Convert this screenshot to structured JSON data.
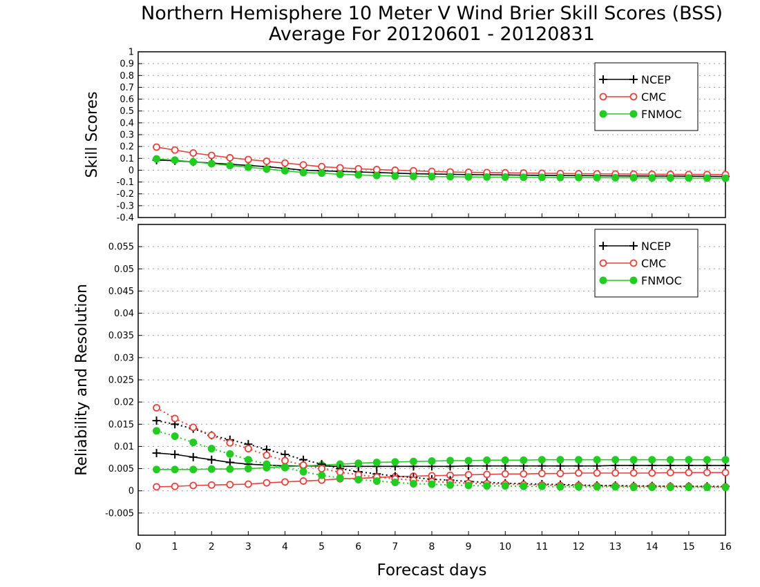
{
  "title_line1": "Northern Hemisphere 10 Meter V Wind Brier Skill Scores (BSS)",
  "title_line2": "Average For 20120601 - 20120831",
  "xlabel": "Forecast days",
  "colors": {
    "NCEP": "#000000",
    "CMC": "#e8403c",
    "FNMOC": "#22cc22",
    "grid": "#999999"
  },
  "chart_data": [
    {
      "type": "line",
      "ylabel": "Skill Scores",
      "xlim": [
        0,
        16
      ],
      "ylim": [
        -0.4,
        1
      ],
      "x_ticks": [
        0,
        1,
        2,
        3,
        4,
        5,
        6,
        7,
        8,
        9,
        10,
        11,
        12,
        13,
        14,
        15,
        16
      ],
      "y_ticks": [
        "-0.4",
        "-0.3",
        "-0.2",
        "-0.1",
        "0",
        "0.1",
        "0.2",
        "0.3",
        "0.4",
        "0.5",
        "0.6",
        "0.7",
        "0.8",
        "0.9",
        "1"
      ],
      "grid": true,
      "legend_position": "top-right",
      "x": [
        0.5,
        1,
        1.5,
        2,
        2.5,
        3,
        3.5,
        4,
        4.5,
        5,
        5.5,
        6,
        6.5,
        7,
        7.5,
        8,
        8.5,
        9,
        9.5,
        10,
        10.5,
        11,
        11.5,
        12,
        12.5,
        13,
        13.5,
        14,
        14.5,
        15,
        15.5,
        16
      ],
      "series": [
        {
          "name": "NCEP",
          "marker": "plus",
          "line": "solid",
          "values": [
            0.085,
            0.08,
            0.07,
            0.06,
            0.05,
            0.04,
            0.03,
            0.015,
            0.0,
            -0.005,
            -0.01,
            -0.015,
            -0.02,
            -0.025,
            -0.03,
            -0.032,
            -0.035,
            -0.037,
            -0.039,
            -0.04,
            -0.042,
            -0.044,
            -0.045,
            -0.046,
            -0.047,
            -0.048,
            -0.049,
            -0.05,
            -0.05,
            -0.051,
            -0.052,
            -0.053
          ]
        },
        {
          "name": "CMC",
          "marker": "open-circle",
          "line": "solid",
          "values": [
            0.195,
            0.17,
            0.145,
            0.125,
            0.105,
            0.09,
            0.075,
            0.06,
            0.045,
            0.03,
            0.02,
            0.012,
            0.005,
            0.0,
            -0.005,
            -0.01,
            -0.015,
            -0.018,
            -0.02,
            -0.022,
            -0.024,
            -0.026,
            -0.028,
            -0.03,
            -0.031,
            -0.032,
            -0.033,
            -0.034,
            -0.035,
            -0.036,
            -0.036,
            -0.037
          ]
        },
        {
          "name": "FNMOC",
          "marker": "filled-circle",
          "line": "solid",
          "values": [
            0.095,
            0.085,
            0.07,
            0.055,
            0.04,
            0.025,
            0.01,
            -0.005,
            -0.02,
            -0.025,
            -0.035,
            -0.04,
            -0.045,
            -0.05,
            -0.052,
            -0.054,
            -0.055,
            -0.057,
            -0.058,
            -0.059,
            -0.06,
            -0.061,
            -0.062,
            -0.062,
            -0.063,
            -0.064,
            -0.064,
            -0.065,
            -0.065,
            -0.066,
            -0.067,
            -0.068
          ]
        }
      ]
    },
    {
      "type": "line",
      "ylabel": "Reliability and Resolution",
      "xlim": [
        0,
        16
      ],
      "ylim": [
        -0.01,
        0.06
      ],
      "x_ticks": [
        0,
        1,
        2,
        3,
        4,
        5,
        6,
        7,
        8,
        9,
        10,
        11,
        12,
        13,
        14,
        15,
        16
      ],
      "y_ticks": [
        "-0.005",
        "0",
        "0.005",
        "0.01",
        "0.015",
        "0.02",
        "0.025",
        "0.03",
        "0.035",
        "0.04",
        "0.045",
        "0.05",
        "0.055"
      ],
      "grid": true,
      "legend_position": "top-right",
      "x": [
        0.5,
        1,
        1.5,
        2,
        2.5,
        3,
        3.5,
        4,
        4.5,
        5,
        5.5,
        6,
        6.5,
        7,
        7.5,
        8,
        8.5,
        9,
        9.5,
        10,
        10.5,
        11,
        11.5,
        12,
        12.5,
        13,
        13.5,
        14,
        14.5,
        15,
        15.5,
        16
      ],
      "series": [
        {
          "name": "NCEP",
          "group": "resolution",
          "marker": "plus",
          "line": "solid",
          "values": [
            0.0085,
            0.0082,
            0.0076,
            0.007,
            0.0064,
            0.006,
            0.0058,
            0.0056,
            0.0056,
            0.0056,
            0.0055,
            0.0055,
            0.0055,
            0.0055,
            0.0055,
            0.0055,
            0.0055,
            0.0056,
            0.0056,
            0.0056,
            0.0056,
            0.0056,
            0.0056,
            0.0056,
            0.0056,
            0.0057,
            0.0057,
            0.0057,
            0.0057,
            0.0057,
            0.0057,
            0.0057
          ]
        },
        {
          "name": "CMC",
          "group": "resolution",
          "marker": "open-circle",
          "line": "solid",
          "values": [
            0.0009,
            0.001,
            0.0012,
            0.0013,
            0.0014,
            0.0015,
            0.0018,
            0.002,
            0.0022,
            0.0024,
            0.0027,
            0.0028,
            0.003,
            0.0032,
            0.0033,
            0.0034,
            0.0035,
            0.0036,
            0.0037,
            0.0038,
            0.0038,
            0.0039,
            0.0039,
            0.004,
            0.004,
            0.004,
            0.004,
            0.004,
            0.0041,
            0.0041,
            0.0041,
            0.0041
          ]
        },
        {
          "name": "FNMOC",
          "group": "resolution",
          "marker": "filled-circle",
          "line": "solid",
          "values": [
            0.0048,
            0.0048,
            0.0048,
            0.0049,
            0.0049,
            0.005,
            0.0052,
            0.0054,
            0.0056,
            0.0058,
            0.006,
            0.0062,
            0.0064,
            0.0065,
            0.0066,
            0.0067,
            0.0068,
            0.0068,
            0.0069,
            0.0069,
            0.0069,
            0.007,
            0.007,
            0.007,
            0.007,
            0.007,
            0.007,
            0.007,
            0.007,
            0.007,
            0.007,
            0.007
          ]
        },
        {
          "name": "NCEP",
          "group": "reliability",
          "marker": "plus",
          "line": "dotted",
          "values": [
            0.0158,
            0.015,
            0.014,
            0.0125,
            0.0115,
            0.0105,
            0.0093,
            0.0082,
            0.007,
            0.006,
            0.005,
            0.0043,
            0.0038,
            0.0033,
            0.003,
            0.0026,
            0.0024,
            0.0021,
            0.0019,
            0.0017,
            0.0016,
            0.0015,
            0.0014,
            0.0013,
            0.0012,
            0.0012,
            0.0011,
            0.0011,
            0.001,
            0.001,
            0.001,
            0.001
          ]
        },
        {
          "name": "CMC",
          "group": "reliability",
          "marker": "open-circle",
          "line": "dotted",
          "values": [
            0.0187,
            0.0163,
            0.0143,
            0.0125,
            0.0108,
            0.0095,
            0.008,
            0.0068,
            0.0058,
            0.005,
            0.0042,
            0.0036,
            0.0031,
            0.0027,
            0.0024,
            0.0021,
            0.0019,
            0.0017,
            0.0016,
            0.0015,
            0.0014,
            0.0013,
            0.0012,
            0.0012,
            0.0011,
            0.0011,
            0.001,
            0.001,
            0.001,
            0.001,
            0.0009,
            0.0009
          ]
        },
        {
          "name": "FNMOC",
          "group": "reliability",
          "marker": "filled-circle",
          "line": "dotted",
          "values": [
            0.0135,
            0.0123,
            0.0109,
            0.0095,
            0.0083,
            0.007,
            0.006,
            0.0052,
            0.0043,
            0.0035,
            0.0029,
            0.0025,
            0.0022,
            0.0019,
            0.0016,
            0.0015,
            0.0013,
            0.0012,
            0.0011,
            0.0011,
            0.001,
            0.001,
            0.0009,
            0.0009,
            0.0009,
            0.0009,
            0.0008,
            0.0008,
            0.0008,
            0.0008,
            0.0008,
            0.0008
          ]
        }
      ]
    }
  ]
}
